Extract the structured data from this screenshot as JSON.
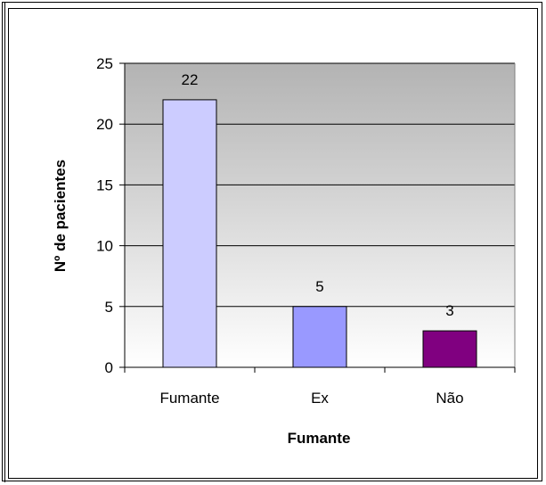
{
  "chart_data": {
    "type": "bar",
    "title": "",
    "xlabel": "Fumante",
    "ylabel": "Nº de pacientes",
    "categories": [
      "Fumante",
      "Ex",
      "Não"
    ],
    "values": [
      22,
      5,
      3
    ],
    "data_labels": [
      "22",
      "5",
      "3"
    ],
    "ylim": [
      0,
      25
    ],
    "yticks": [
      0,
      5,
      10,
      15,
      20,
      25
    ],
    "ytick_labels": [
      "0",
      "5",
      "10",
      "15",
      "20",
      "25"
    ],
    "grid": true,
    "legend": "none",
    "colors": [
      "#ccccff",
      "#9999ff",
      "#800080"
    ],
    "plot_background": "gradient gray to white"
  }
}
